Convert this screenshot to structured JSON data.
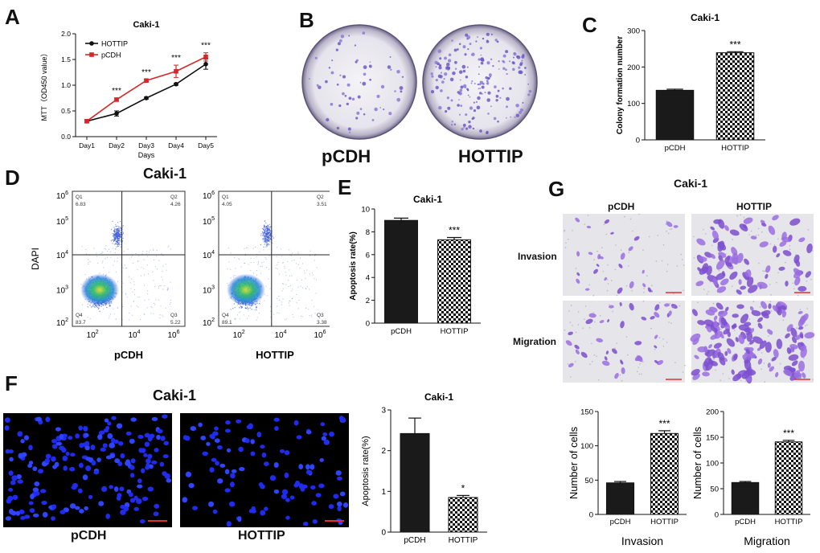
{
  "figure": {
    "panels": [
      {
        "letter": "A"
      },
      {
        "letter": "B"
      },
      {
        "letter": "C"
      },
      {
        "letter": "D"
      },
      {
        "letter": "E"
      },
      {
        "letter": "F"
      },
      {
        "letter": "G"
      }
    ]
  },
  "panelB": {
    "labels": [
      "pCDH",
      "HOTTIP"
    ]
  },
  "panelD": {
    "title": "Caki-1",
    "ylabel": "DAPI",
    "xtick_base": "10",
    "ticks_exp": [
      "2",
      "3",
      "4",
      "5",
      "6"
    ],
    "xticks_exp": [
      "2",
      "4",
      "6"
    ],
    "plots": [
      {
        "label": "pCDH",
        "q1": "Q1",
        "q1v": "6.83",
        "q2": "Q2",
        "q2v": "4.26",
        "q3": "Q3",
        "q3v": "5.22",
        "q4": "Q4",
        "q4v": "83.7"
      },
      {
        "label": "HOTTIP",
        "q1": "Q1",
        "q1v": "4.05",
        "q2": "Q2",
        "q2v": "3.51",
        "q3": "Q3",
        "q3v": "3.38",
        "q4": "Q4",
        "q4v": "89.1"
      }
    ]
  },
  "panelF": {
    "title": "Caki-1",
    "images": [
      {
        "label": "pCDH"
      },
      {
        "label": "HOTTIP"
      }
    ]
  },
  "panelG": {
    "title": "Caki-1",
    "col_labels": [
      "pCDH",
      "HOTTIP"
    ],
    "row_labels": [
      "Invasion",
      "Migration"
    ]
  },
  "chart_data": [
    {
      "id": "A",
      "type": "line",
      "title": "Caki-1",
      "xlabel": "Days",
      "ylabel": "MTT（OD450 value）",
      "categories": [
        "Day1",
        "Day2",
        "Day3",
        "Day4",
        "Day5"
      ],
      "ylim": [
        0,
        2.0
      ],
      "yticks": [
        "0.0",
        "0.5",
        "1.0",
        "1.5",
        "2.0"
      ],
      "legend": "top-left",
      "series": [
        {
          "name": "HOTTIP",
          "color": "#111111",
          "values": [
            0.3,
            0.45,
            0.75,
            1.02,
            1.41
          ],
          "errors": [
            0.03,
            0.05,
            0.02,
            0.02,
            0.1
          ]
        },
        {
          "name": "pCDH",
          "color": "#d62728",
          "values": [
            0.3,
            0.72,
            1.09,
            1.27,
            1.55
          ],
          "errors": [
            0.03,
            0.03,
            0.02,
            0.12,
            0.08
          ]
        }
      ],
      "annotations": [
        {
          "index": 1,
          "text": "***"
        },
        {
          "index": 2,
          "text": "***"
        },
        {
          "index": 3,
          "text": "***"
        },
        {
          "index": 4,
          "text": "***"
        }
      ]
    },
    {
      "id": "C",
      "type": "bar",
      "title": "Caki-1",
      "ylabel": "Colony formation number",
      "categories": [
        "pCDH",
        "HOTTIP"
      ],
      "values": [
        136,
        239
      ],
      "errors": [
        3,
        3
      ],
      "ylim": [
        0,
        300
      ],
      "yticks": [
        "0",
        "100",
        "200",
        "300"
      ],
      "annotations": [
        {
          "index": 1,
          "text": "***"
        }
      ]
    },
    {
      "id": "E",
      "type": "bar",
      "title": "Caki-1",
      "ylabel": "Apoptosis rate(%)",
      "categories": [
        "pCDH",
        "HOTTIP"
      ],
      "values": [
        9.0,
        7.3
      ],
      "errors": [
        0.2,
        0.2
      ],
      "ylim": [
        0,
        10
      ],
      "yticks": [
        "0",
        "2",
        "4",
        "6",
        "8",
        "10"
      ],
      "annotations": [
        {
          "index": 1,
          "text": "***"
        }
      ]
    },
    {
      "id": "F",
      "type": "bar",
      "title": "Caki-1",
      "ylabel": "Apoptosis rate(%)",
      "categories": [
        "pCDH",
        "HOTTIP"
      ],
      "values": [
        2.42,
        0.85
      ],
      "errors": [
        0.38,
        0.05
      ],
      "ylim": [
        0,
        3
      ],
      "yticks": [
        "0",
        "1",
        "2",
        "3"
      ],
      "annotations": [
        {
          "index": 1,
          "text": "*"
        }
      ]
    },
    {
      "id": "G1",
      "type": "bar",
      "xlabel": "Invasion",
      "ylabel": "Number of cells",
      "categories": [
        "pCDH",
        "HOTTIP"
      ],
      "values": [
        46,
        118
      ],
      "errors": [
        2,
        4
      ],
      "ylim": [
        0,
        150
      ],
      "yticks": [
        "0",
        "50",
        "100",
        "150"
      ],
      "annotations": [
        {
          "index": 1,
          "text": "***"
        }
      ]
    },
    {
      "id": "G2",
      "type": "bar",
      "xlabel": "Migration",
      "ylabel": "Number of cells",
      "categories": [
        "pCDH",
        "HOTTIP"
      ],
      "values": [
        62,
        141
      ],
      "errors": [
        2,
        3
      ],
      "ylim": [
        0,
        200
      ],
      "yticks": [
        "0",
        "50",
        "100",
        "150",
        "200"
      ],
      "annotations": [
        {
          "index": 1,
          "text": "***"
        }
      ]
    }
  ]
}
